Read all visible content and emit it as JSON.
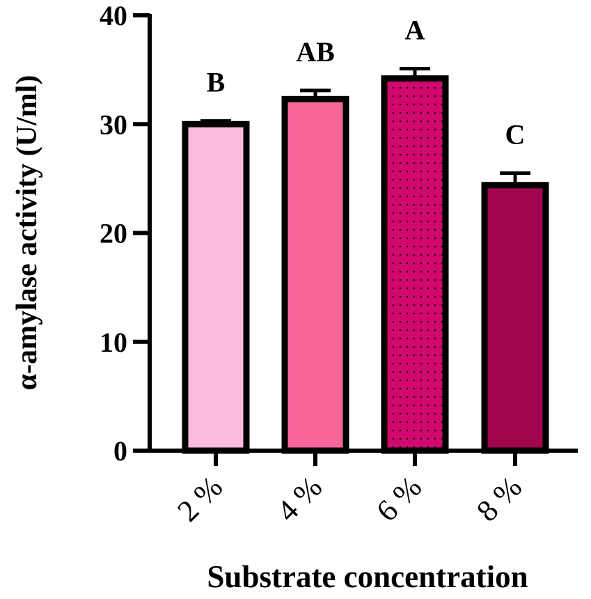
{
  "chart_data": {
    "type": "bar",
    "categories": [
      "2 %",
      "4 %",
      "6 %",
      "8 %"
    ],
    "series": [
      {
        "values": [
          30.0,
          32.3,
          34.2,
          24.4
        ],
        "errors": [
          0.3,
          0.8,
          0.9,
          1.1
        ],
        "colors": [
          "#FDBBDD",
          "#F9669A",
          "#D1086D",
          "#A0064E"
        ],
        "patterns": [
          "solid",
          "solid",
          "dots",
          "solid"
        ]
      }
    ],
    "significance_labels": [
      "B",
      "AB",
      "A",
      "C"
    ],
    "xlabel": "Substrate concentration",
    "ylabel": "α-amylase activity (U/ml)",
    "ylim": [
      0,
      40
    ],
    "yticks": [
      "0",
      "10",
      "20",
      "30",
      "40"
    ],
    "grid": false,
    "legend": "none"
  }
}
